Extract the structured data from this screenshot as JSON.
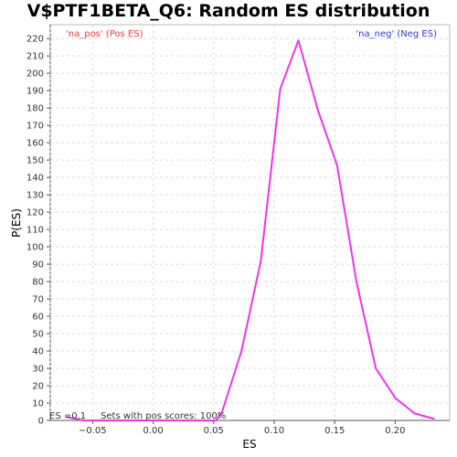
{
  "chart_data": {
    "type": "line",
    "title": "V$PTF1BETA_Q6: Random ES distribution",
    "xlabel": "ES",
    "ylabel": "P(ES)",
    "xlim": [
      -0.085,
      0.245
    ],
    "ylim": [
      0,
      228
    ],
    "x_ticks": [
      -0.05,
      0.0,
      0.05,
      0.1,
      0.15,
      0.2
    ],
    "x_tick_labels": [
      "−0.05",
      "0.00",
      "0.05",
      "0.10",
      "0.15",
      "0.20"
    ],
    "y_ticks": [
      0,
      10,
      20,
      30,
      40,
      50,
      60,
      70,
      80,
      90,
      100,
      110,
      120,
      130,
      140,
      150,
      160,
      170,
      180,
      190,
      200,
      210,
      220
    ],
    "grid": true,
    "series": [
      {
        "color": "#ee33ee",
        "x": [
          -0.072,
          -0.057,
          -0.041,
          -0.026,
          -0.01,
          0.005,
          0.021,
          0.036,
          0.052,
          0.057,
          0.073,
          0.089,
          0.105,
          0.12,
          0.136,
          0.152,
          0.168,
          0.184,
          0.2,
          0.216,
          0.232
        ],
        "y": [
          2,
          0,
          0,
          0,
          0,
          0,
          0,
          0,
          0,
          5,
          40,
          92,
          191,
          219,
          179,
          147,
          80,
          30,
          13,
          4,
          1
        ]
      }
    ],
    "legend_left": {
      "text": "'na_pos' (Pos ES)",
      "color": "#ff3333",
      "position": "top-left"
    },
    "legend_right": {
      "text": "'na_neg' (Neg ES)",
      "color": "#3333dd",
      "position": "top-right"
    },
    "footnote": "ES =0.1     Sets with pos scores: 100%"
  }
}
